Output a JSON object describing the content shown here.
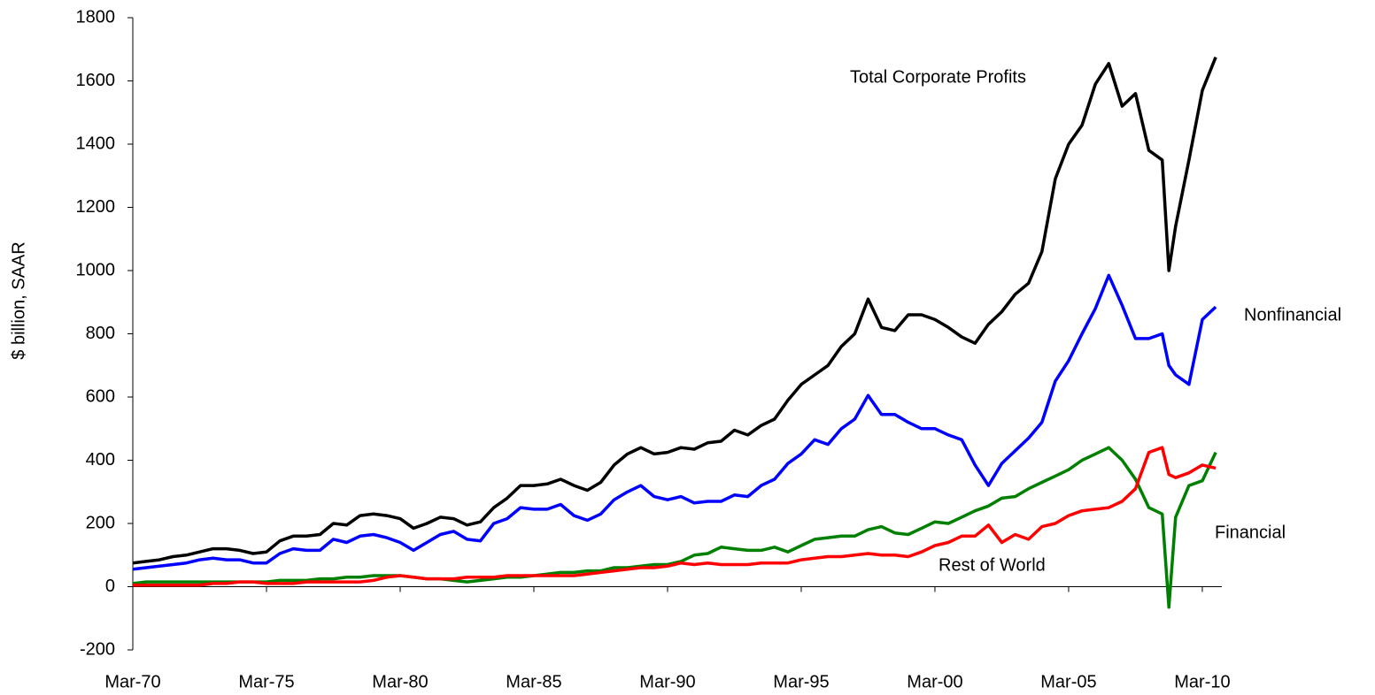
{
  "chart_data": {
    "type": "line",
    "ylabel": "$ billion, SAAR",
    "annotations": [
      "Total Corporate Profits",
      "Nonfinancial",
      "Financial",
      "Rest of World"
    ],
    "x": [
      1970.17,
      1970.67,
      1971.17,
      1971.67,
      1972.17,
      1972.67,
      1973.17,
      1973.67,
      1974.17,
      1974.67,
      1975.17,
      1975.67,
      1976.17,
      1976.67,
      1977.17,
      1977.67,
      1978.17,
      1978.67,
      1979.17,
      1979.67,
      1980.17,
      1980.67,
      1981.17,
      1981.67,
      1982.17,
      1982.67,
      1983.17,
      1983.67,
      1984.17,
      1984.67,
      1985.17,
      1985.67,
      1986.17,
      1986.67,
      1987.17,
      1987.67,
      1988.17,
      1988.67,
      1989.17,
      1989.67,
      1990.17,
      1990.67,
      1991.17,
      1991.67,
      1992.17,
      1992.67,
      1993.17,
      1993.67,
      1994.17,
      1994.67,
      1995.17,
      1995.67,
      1996.17,
      1996.67,
      1997.17,
      1997.67,
      1998.17,
      1998.67,
      1999.17,
      1999.67,
      2000.17,
      2000.67,
      2001.17,
      2001.67,
      2002.17,
      2002.67,
      2003.17,
      2003.67,
      2004.17,
      2004.67,
      2005.17,
      2005.67,
      2006.17,
      2006.67,
      2007.17,
      2007.67,
      2008.17,
      2008.67,
      2008.92,
      2009.17,
      2009.67,
      2010.17,
      2010.67
    ],
    "series": [
      {
        "name": "Total Corporate Profits",
        "color": "#000000",
        "values": [
          75,
          80,
          85,
          95,
          100,
          110,
          120,
          120,
          115,
          105,
          110,
          145,
          160,
          160,
          165,
          200,
          195,
          225,
          230,
          225,
          215,
          185,
          200,
          220,
          215,
          195,
          205,
          250,
          280,
          320,
          320,
          325,
          340,
          320,
          305,
          330,
          385,
          420,
          440,
          420,
          425,
          440,
          435,
          455,
          460,
          495,
          480,
          510,
          530,
          590,
          640,
          670,
          700,
          760,
          800,
          910,
          820,
          810,
          860,
          860,
          845,
          820,
          790,
          770,
          830,
          870,
          925,
          960,
          1060,
          1290,
          1400,
          1460,
          1590,
          1655,
          1520,
          1560,
          1380,
          1350,
          1000,
          1140,
          1350,
          1570,
          1675
        ]
      },
      {
        "name": "Nonfinancial",
        "color": "#0000ff",
        "values": [
          55,
          60,
          65,
          70,
          75,
          85,
          90,
          85,
          85,
          75,
          75,
          105,
          120,
          115,
          115,
          150,
          140,
          160,
          165,
          155,
          140,
          115,
          140,
          165,
          175,
          150,
          145,
          200,
          215,
          250,
          245,
          245,
          260,
          225,
          210,
          230,
          275,
          300,
          320,
          285,
          275,
          285,
          265,
          270,
          270,
          290,
          285,
          320,
          340,
          390,
          420,
          465,
          450,
          500,
          530,
          605,
          545,
          545,
          520,
          500,
          500,
          480,
          465,
          385,
          320,
          390,
          430,
          470,
          520,
          650,
          715,
          800,
          880,
          985,
          890,
          785,
          785,
          800,
          700,
          670,
          640,
          845,
          885
        ]
      },
      {
        "name": "Financial",
        "color": "#008000",
        "values": [
          10,
          15,
          15,
          15,
          15,
          15,
          15,
          15,
          15,
          15,
          15,
          20,
          20,
          20,
          25,
          25,
          30,
          30,
          35,
          35,
          35,
          30,
          25,
          25,
          20,
          15,
          20,
          25,
          30,
          30,
          35,
          40,
          45,
          45,
          50,
          50,
          60,
          60,
          65,
          70,
          70,
          80,
          100,
          105,
          125,
          120,
          115,
          115,
          125,
          110,
          130,
          150,
          155,
          160,
          160,
          180,
          190,
          170,
          165,
          185,
          205,
          200,
          220,
          240,
          255,
          280,
          285,
          310,
          330,
          350,
          370,
          400,
          420,
          440,
          400,
          340,
          250,
          230,
          -65,
          220,
          320,
          335,
          425
        ]
      },
      {
        "name": "Rest of World",
        "color": "#ff0000",
        "values": [
          5,
          5,
          5,
          5,
          5,
          5,
          10,
          10,
          15,
          15,
          10,
          10,
          10,
          15,
          15,
          15,
          15,
          15,
          20,
          30,
          35,
          30,
          25,
          25,
          25,
          30,
          30,
          30,
          35,
          35,
          35,
          35,
          35,
          35,
          40,
          45,
          50,
          55,
          60,
          60,
          65,
          75,
          70,
          75,
          70,
          70,
          70,
          75,
          75,
          75,
          85,
          90,
          95,
          95,
          100,
          105,
          100,
          100,
          95,
          110,
          130,
          140,
          160,
          160,
          195,
          140,
          165,
          150,
          190,
          200,
          225,
          240,
          245,
          250,
          270,
          310,
          425,
          440,
          355,
          345,
          360,
          385,
          375
        ]
      }
    ],
    "xlim": [
      1970.17,
      2010.9
    ],
    "xticks": [
      {
        "value": 1970.17,
        "label": "Mar-70"
      },
      {
        "value": 1975.17,
        "label": "Mar-75"
      },
      {
        "value": 1980.17,
        "label": "Mar-80"
      },
      {
        "value": 1985.17,
        "label": "Mar-85"
      },
      {
        "value": 1990.17,
        "label": "Mar-90"
      },
      {
        "value": 1995.17,
        "label": "Mar-95"
      },
      {
        "value": 2000.17,
        "label": "Mar-00"
      },
      {
        "value": 2005.17,
        "label": "Mar-05"
      },
      {
        "value": 2010.17,
        "label": "Mar-10"
      }
    ],
    "ylim": [
      -200,
      1800
    ],
    "yticks": [
      -200,
      0,
      200,
      400,
      600,
      800,
      1000,
      1200,
      1400,
      1600,
      1800
    ]
  }
}
